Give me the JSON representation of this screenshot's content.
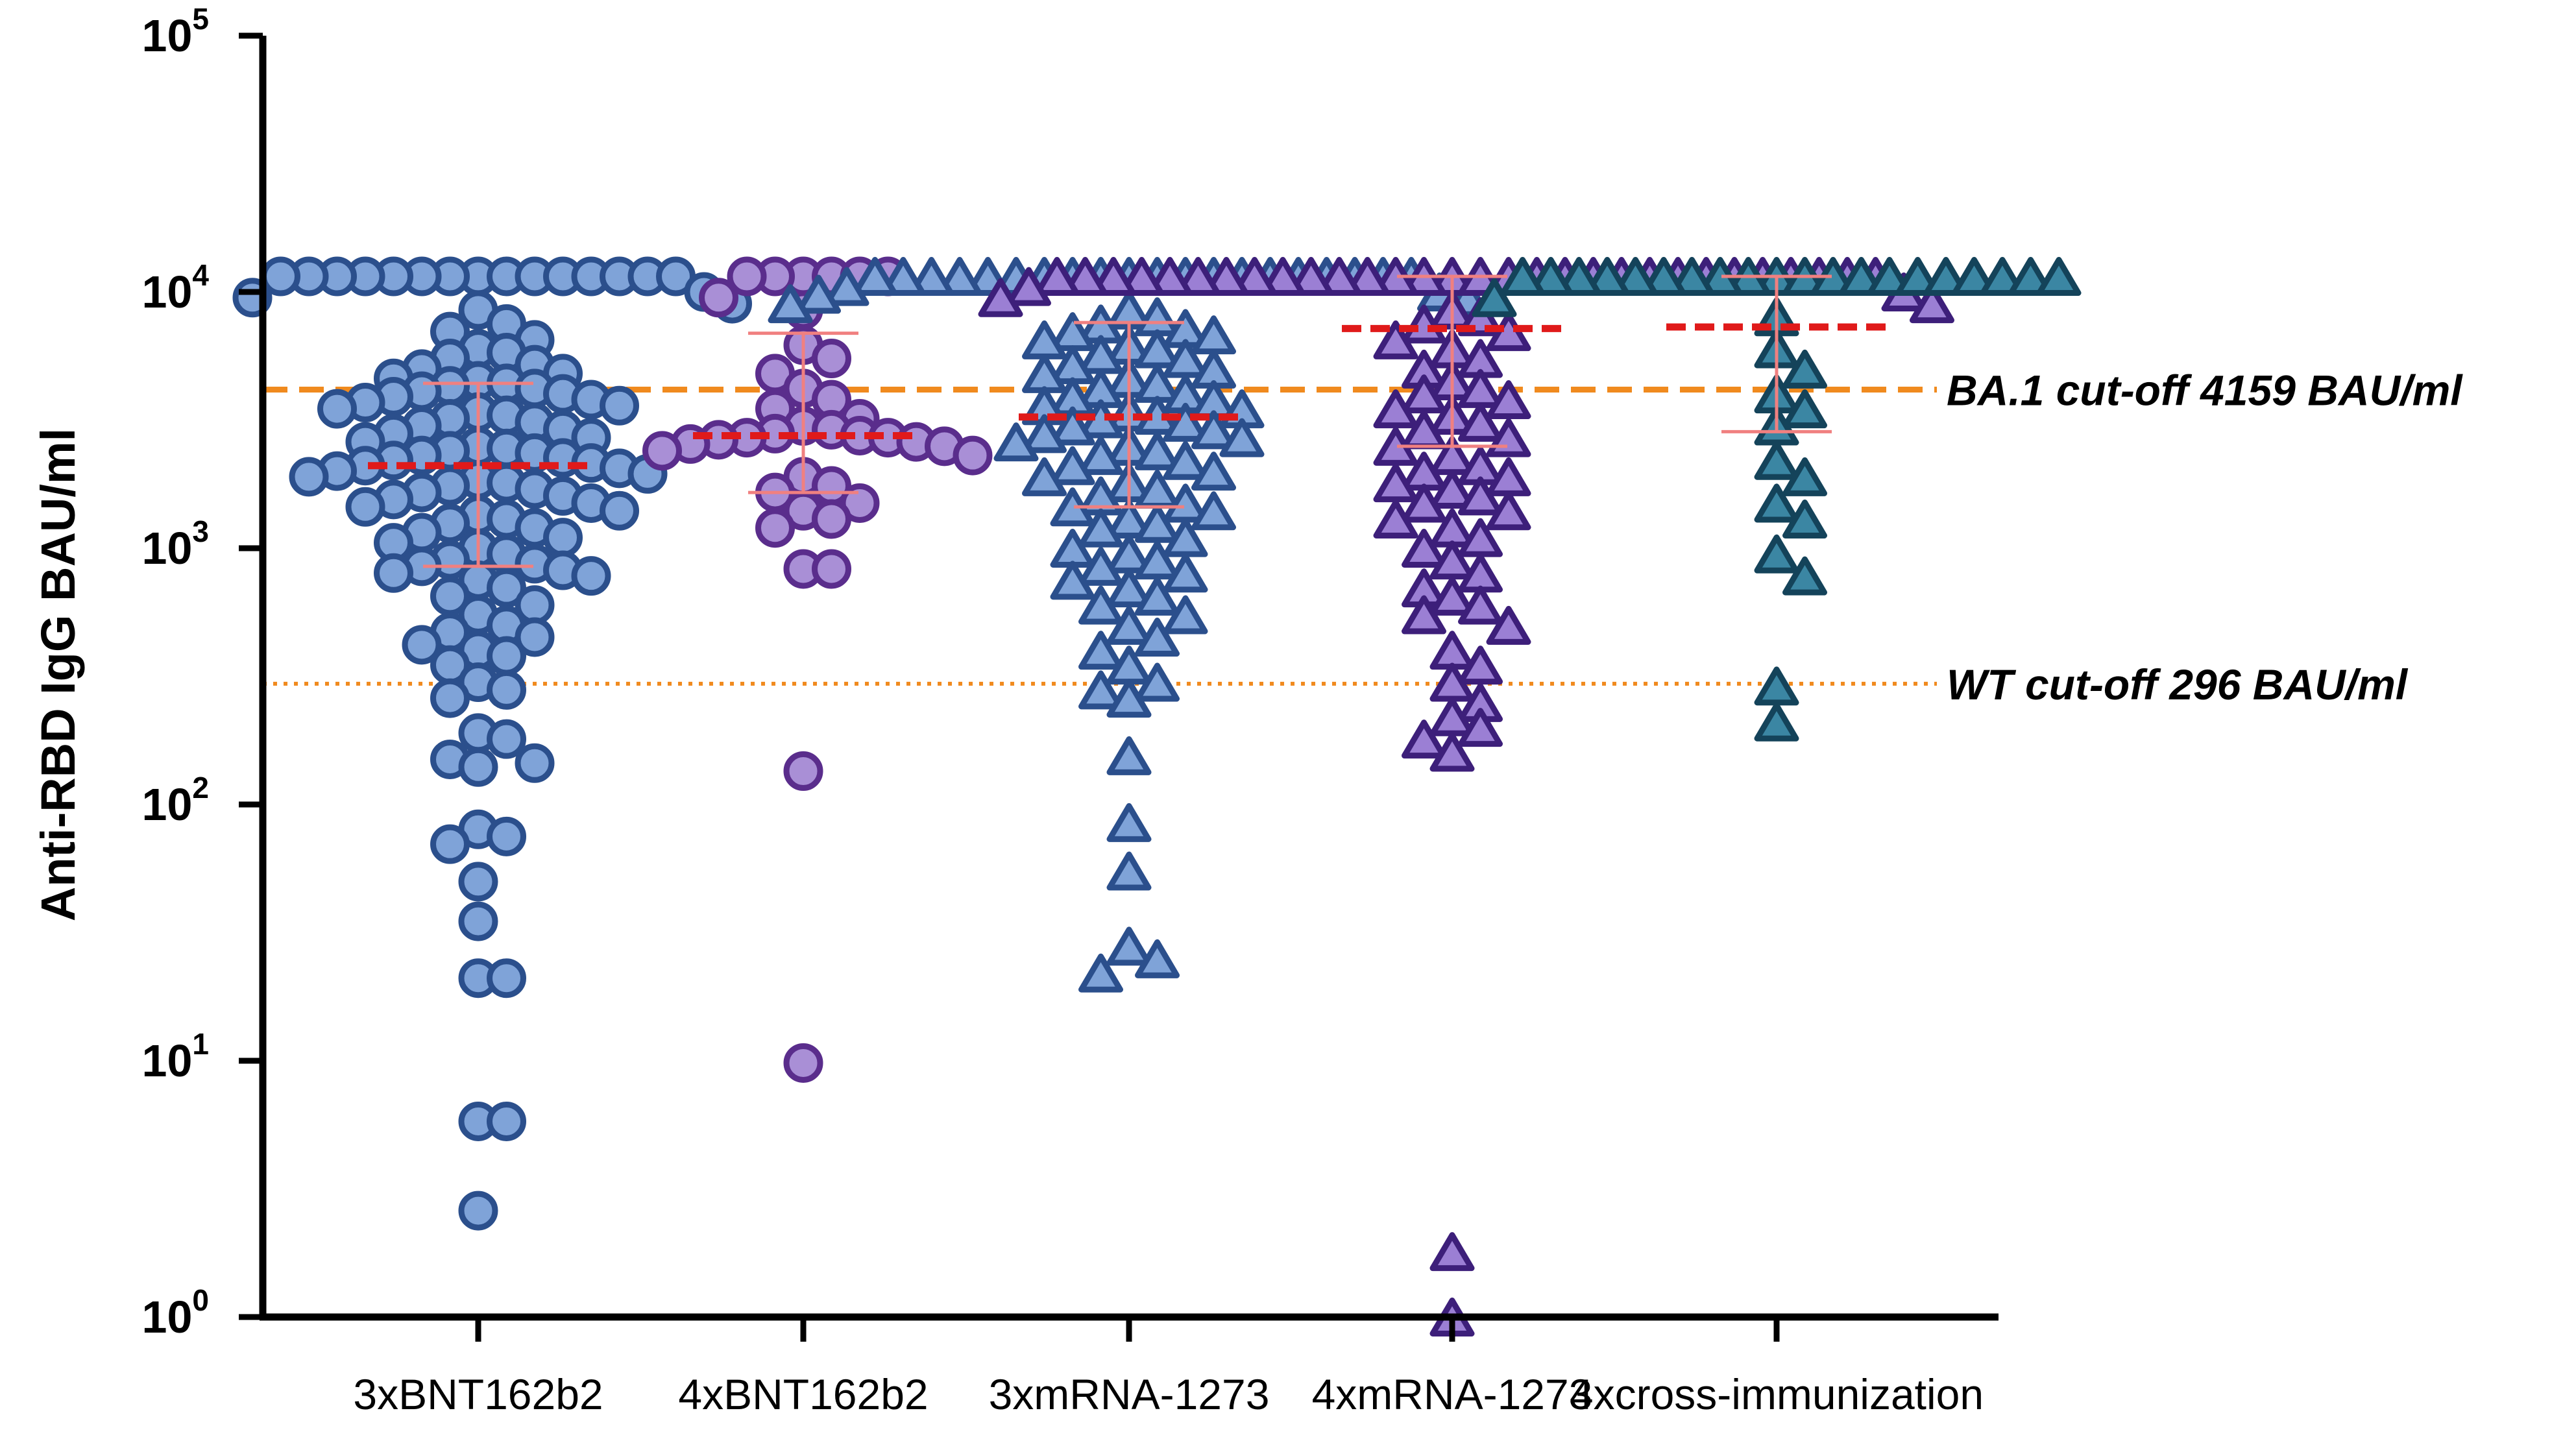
{
  "chart_data": {
    "type": "scatter",
    "subtype": "log-scale dot plot with median and interquartile range",
    "ylabel": "Anti-RBD IgG BAU/ml",
    "xlabel": "",
    "yscale": "log10",
    "ylim": [
      1,
      100000
    ],
    "y_ticks": [
      {
        "value": 1,
        "base": "10",
        "exp": "0"
      },
      {
        "value": 10,
        "base": "10",
        "exp": "1"
      },
      {
        "value": 100,
        "base": "10",
        "exp": "2"
      },
      {
        "value": 1000,
        "base": "10",
        "exp": "3"
      },
      {
        "value": 10000,
        "base": "10",
        "exp": "4"
      },
      {
        "value": 100000,
        "base": "10",
        "exp": "5"
      }
    ],
    "categories": [
      "3xBNT162b2",
      "4xBNT162b2",
      "3xmRNA-1273",
      "4xmRNA-1273",
      "4xcross-immunization"
    ],
    "reference_lines": [
      {
        "label": "BA.1 cut-off  4159 BAU/ml",
        "value": 4159,
        "style": "dashed",
        "color": "#f08a1e"
      },
      {
        "label": "WT cut-off 296 BAU/ml",
        "value": 296,
        "style": "dotted",
        "color": "#f08a1e"
      }
    ],
    "series": [
      {
        "name": "3xBNT162b2",
        "marker": "circle",
        "fill": "#7fa3d8",
        "stroke": "#2b4f8c",
        "median": 2100,
        "q1": 850,
        "q3": 4400,
        "values": [
          11500,
          11500,
          11500,
          11500,
          11500,
          11500,
          11500,
          11500,
          11500,
          11500,
          11500,
          11500,
          11500,
          11500,
          11500,
          10000,
          9500,
          9000,
          8500,
          7500,
          7000,
          6500,
          6000,
          5800,
          5500,
          5200,
          5000,
          4800,
          4600,
          4500,
          4400,
          4300,
          4200,
          4100,
          4000,
          3900,
          3800,
          3700,
          3600,
          3500,
          3400,
          3300,
          3200,
          3100,
          3000,
          2900,
          2800,
          2700,
          2600,
          2500,
          2450,
          2400,
          2350,
          2300,
          2250,
          2200,
          2150,
          2100,
          2050,
          2000,
          1950,
          1900,
          1850,
          1800,
          1750,
          1700,
          1650,
          1600,
          1550,
          1500,
          1450,
          1400,
          1350,
          1300,
          1250,
          1200,
          1150,
          1100,
          1050,
          1000,
          950,
          900,
          870,
          850,
          820,
          800,
          780,
          750,
          700,
          650,
          600,
          550,
          500,
          470,
          450,
          420,
          400,
          380,
          350,
          300,
          280,
          260,
          190,
          180,
          150,
          145,
          140,
          80,
          75,
          70,
          50,
          35,
          21,
          21,
          5.8,
          5.8,
          2.6
        ]
      },
      {
        "name": "4xBNT162b2",
        "marker": "circle",
        "fill": "#a98fd6",
        "stroke": "#5a2d8c",
        "median": 2750,
        "q1": 1650,
        "q3": 6900,
        "values": [
          11500,
          11500,
          11500,
          11500,
          11500,
          11500,
          9500,
          8500,
          6200,
          5500,
          4800,
          4200,
          3800,
          3500,
          3200,
          3000,
          2900,
          2800,
          2750,
          2700,
          2700,
          2650,
          2600,
          2550,
          2500,
          2400,
          2300,
          1900,
          1750,
          1650,
          1500,
          1400,
          1300,
          1200,
          830,
          830,
          135,
          9.8
        ]
      },
      {
        "name": "3xmRNA-1273",
        "marker": "triangle",
        "fill": "#7fa3d8",
        "stroke": "#2b4f8c",
        "median": 3250,
        "q1": 1450,
        "q3": 7600,
        "values": [
          11500,
          11500,
          11500,
          11500,
          11500,
          11500,
          11500,
          11500,
          11500,
          11500,
          11500,
          11500,
          11500,
          11500,
          11500,
          11500,
          11500,
          11500,
          11500,
          11500,
          10500,
          10000,
          9800,
          9500,
          9000,
          8500,
          8000,
          7500,
          7200,
          7000,
          6800,
          6500,
          6200,
          6000,
          5700,
          5500,
          5200,
          5000,
          4800,
          4600,
          4400,
          4200,
          4000,
          3900,
          3800,
          3600,
          3500,
          3400,
          3300,
          3200,
          3100,
          3000,
          2900,
          2800,
          2700,
          2600,
          2500,
          2400,
          2300,
          2200,
          2100,
          2000,
          1900,
          1800,
          1700,
          1600,
          1500,
          1450,
          1400,
          1300,
          1250,
          1200,
          1100,
          1000,
          950,
          900,
          850,
          800,
          750,
          700,
          650,
          600,
          550,
          500,
          450,
          400,
          350,
          300,
          280,
          260,
          155,
          85,
          55,
          28,
          25,
          22
        ]
      },
      {
        "name": "4xmRNA-1273",
        "marker": "triangle",
        "fill": "#9b7fd4",
        "stroke": "#3d1f7a",
        "median": 7200,
        "q1": 2500,
        "q3": 11500,
        "values": [
          11500,
          11500,
          11500,
          11500,
          11500,
          11500,
          11500,
          11500,
          11500,
          11500,
          11500,
          11500,
          11500,
          11500,
          11500,
          11500,
          11500,
          11500,
          11500,
          11500,
          11500,
          11500,
          11500,
          11500,
          11500,
          11500,
          11500,
          11500,
          11500,
          11500,
          10500,
          10000,
          9500,
          9000,
          8500,
          8000,
          7500,
          7000,
          6500,
          6000,
          5500,
          5000,
          4500,
          4200,
          4000,
          3800,
          3500,
          3300,
          3100,
          2900,
          2700,
          2500,
          2300,
          2100,
          2000,
          1900,
          1800,
          1700,
          1600,
          1500,
          1400,
          1300,
          1200,
          1100,
          1000,
          900,
          800,
          700,
          650,
          600,
          550,
          500,
          400,
          350,
          300,
          250,
          220,
          200,
          180,
          160,
          1.8,
          1.0
        ]
      },
      {
        "name": "4xcross-immunization",
        "marker": "triangle",
        "fill": "#3b86a3",
        "stroke": "#14435a",
        "median": 7300,
        "q1": 2850,
        "q3": 11500,
        "values": [
          11500,
          11500,
          11500,
          11500,
          11500,
          11500,
          11500,
          11500,
          11500,
          11500,
          11500,
          11500,
          11500,
          11500,
          11500,
          11500,
          11500,
          11500,
          11500,
          11500,
          9500,
          8000,
          6000,
          5000,
          4000,
          3500,
          3000,
          2200,
          1900,
          1500,
          1300,
          950,
          780,
          290,
          210
        ]
      }
    ]
  }
}
